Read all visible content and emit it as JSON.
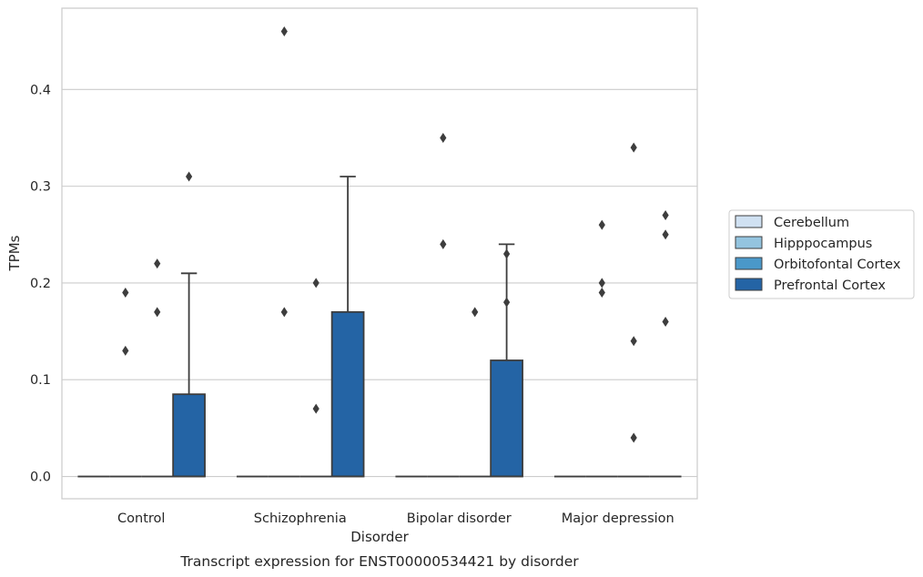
{
  "chart_data": {
    "type": "box",
    "caption": "Transcript expression for ENST00000534421 by disorder",
    "xlabel": "Disorder",
    "ylabel": "TPMs",
    "ylim": [
      -0.023,
      0.484
    ],
    "yticks": [
      0.0,
      0.1,
      0.2,
      0.3,
      0.4
    ],
    "ytick_labels": [
      "0.0",
      "0.1",
      "0.2",
      "0.3",
      "0.4"
    ],
    "grid": "horizontal",
    "legend_position": "right",
    "categories": [
      "Control",
      "Schizophrenia",
      "Bipolar disorder",
      "Major depression"
    ],
    "series": [
      {
        "name": "Cerebellum",
        "color": "#d0e1f2",
        "boxes": [
          {
            "q1": 0,
            "median": 0,
            "q3": 0,
            "whisker_low": 0,
            "whisker_high": 0,
            "outliers": []
          },
          {
            "q1": 0,
            "median": 0,
            "q3": 0,
            "whisker_low": 0,
            "whisker_high": 0,
            "outliers": []
          },
          {
            "q1": 0,
            "median": 0,
            "q3": 0,
            "whisker_low": 0,
            "whisker_high": 0,
            "outliers": []
          },
          {
            "q1": 0,
            "median": 0,
            "q3": 0,
            "whisker_low": 0,
            "whisker_high": 0,
            "outliers": []
          }
        ]
      },
      {
        "name": "Hipppocampus",
        "color": "#94c4df",
        "boxes": [
          {
            "q1": 0,
            "median": 0,
            "q3": 0,
            "whisker_low": 0,
            "whisker_high": 0,
            "outliers": [
              0.19,
              0.13
            ]
          },
          {
            "q1": 0,
            "median": 0,
            "q3": 0,
            "whisker_low": 0,
            "whisker_high": 0,
            "outliers": [
              0.46,
              0.17
            ]
          },
          {
            "q1": 0,
            "median": 0,
            "q3": 0,
            "whisker_low": 0,
            "whisker_high": 0,
            "outliers": [
              0.35,
              0.24
            ]
          },
          {
            "q1": 0,
            "median": 0,
            "q3": 0,
            "whisker_low": 0,
            "whisker_high": 0,
            "outliers": [
              0.26,
              0.2,
              0.19
            ]
          }
        ]
      },
      {
        "name": "Orbitofontal Cortex",
        "color": "#4a98c9",
        "boxes": [
          {
            "q1": 0,
            "median": 0,
            "q3": 0,
            "whisker_low": 0,
            "whisker_high": 0,
            "outliers": [
              0.22,
              0.17
            ]
          },
          {
            "q1": 0,
            "median": 0,
            "q3": 0,
            "whisker_low": 0,
            "whisker_high": 0,
            "outliers": [
              0.2,
              0.07
            ]
          },
          {
            "q1": 0,
            "median": 0,
            "q3": 0,
            "whisker_low": 0,
            "whisker_high": 0,
            "outliers": [
              0.17
            ]
          },
          {
            "q1": 0,
            "median": 0,
            "q3": 0,
            "whisker_low": 0,
            "whisker_high": 0,
            "outliers": [
              0.34,
              0.14,
              0.04
            ]
          }
        ]
      },
      {
        "name": "Prefrontal Cortex",
        "color": "#2464a5",
        "boxes": [
          {
            "q1": 0,
            "median": 0,
            "q3": 0.085,
            "whisker_low": 0,
            "whisker_high": 0.21,
            "outliers": [
              0.31
            ]
          },
          {
            "q1": 0,
            "median": 0,
            "q3": 0.17,
            "whisker_low": 0,
            "whisker_high": 0.31,
            "outliers": []
          },
          {
            "q1": 0,
            "median": 0,
            "q3": 0.12,
            "whisker_low": 0,
            "whisker_high": 0.24,
            "outliers": [
              0.23,
              0.18
            ]
          },
          {
            "q1": 0,
            "median": 0,
            "q3": 0,
            "whisker_low": 0,
            "whisker_high": 0,
            "outliers": [
              0.27,
              0.25,
              0.16
            ]
          }
        ]
      }
    ]
  }
}
